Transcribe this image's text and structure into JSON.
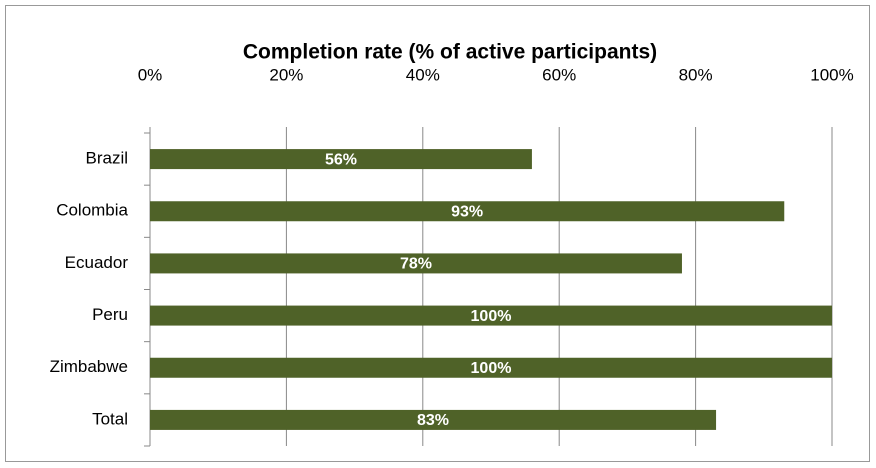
{
  "chart_data": {
    "type": "bar",
    "orientation": "horizontal",
    "title": "Completion rate (% of active participants)",
    "categories": [
      "Brazil",
      "Colombia",
      "Ecuador",
      "Peru",
      "Zimbabwe",
      "Total"
    ],
    "values": [
      56,
      93,
      78,
      100,
      100,
      83
    ],
    "value_labels": [
      "56%",
      "93%",
      "78%",
      "100%",
      "100%",
      "83%"
    ],
    "color": "#4f6228",
    "xlim": [
      0,
      100
    ],
    "xticks": [
      {
        "value": 0,
        "label": "0%"
      },
      {
        "value": 20,
        "label": "20%"
      },
      {
        "value": 40,
        "label": "40%"
      },
      {
        "value": 60,
        "label": "60%"
      },
      {
        "value": 80,
        "label": "80%"
      },
      {
        "value": 100,
        "label": "100%"
      }
    ],
    "grid": true
  }
}
